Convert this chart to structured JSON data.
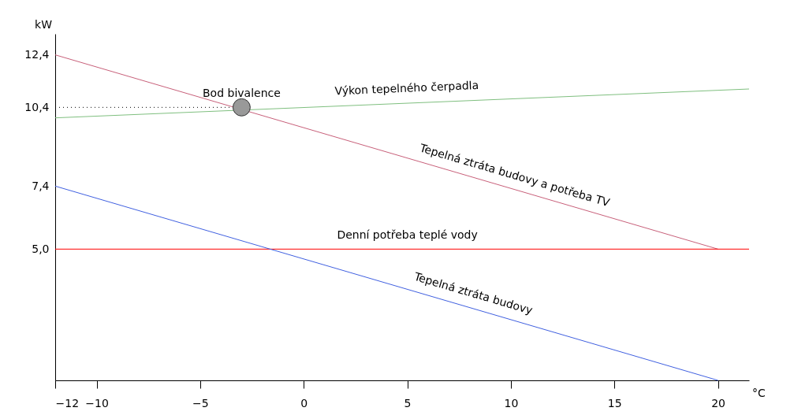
{
  "chart_data": {
    "type": "line",
    "xlabel": "°C",
    "ylabel": "kW",
    "xlim": [
      -12,
      21.5
    ],
    "ylim": [
      0,
      13.2
    ],
    "xticks": [
      -12,
      -10,
      -5,
      0,
      5,
      10,
      15,
      20
    ],
    "yticks": [
      {
        "value": 5.0,
        "label": "5,0"
      },
      {
        "value": 7.4,
        "label": "7,4"
      },
      {
        "value": 10.4,
        "label": "10,4"
      },
      {
        "value": 12.4,
        "label": "12,4"
      }
    ],
    "series": [
      {
        "color": "#7fbf7f",
        "x": [
          -12,
          21.5
        ],
        "values": [
          10.0,
          11.1
        ]
      },
      {
        "color": "#c8607a",
        "x": [
          -12,
          20
        ],
        "values": [
          12.4,
          5.0
        ]
      },
      {
        "color": "#ff0000",
        "x": [
          -12,
          21.5
        ],
        "values": [
          5.0,
          5.0
        ]
      },
      {
        "color": "#4060e0",
        "x": [
          -12,
          20
        ],
        "values": [
          7.4,
          0
        ]
      },
      {
        "color": "#000000",
        "line_style": "dotted",
        "x": [
          -12,
          -3
        ],
        "values": [
          10.4,
          10.4
        ]
      },
      {
        "type": "scatter",
        "color": "#999999",
        "x": [
          -3
        ],
        "values": [
          10.4
        ]
      }
    ],
    "annotations": [
      {
        "text": "Bod bivalence",
        "x": -3,
        "y": 10.4
      },
      {
        "text": "Výkon tepelného čerpadla",
        "x": 5,
        "y": 10.6
      },
      {
        "text": "Tepelná ztráta budovy a potřeba TV",
        "x": 10,
        "y": 7.3
      },
      {
        "text": "Denní potřeba teplé vody",
        "x": 5,
        "y": 5.0
      },
      {
        "text": "Tepelná ztráta budovy",
        "x": 8,
        "y": 2.8
      }
    ],
    "grid": false
  }
}
